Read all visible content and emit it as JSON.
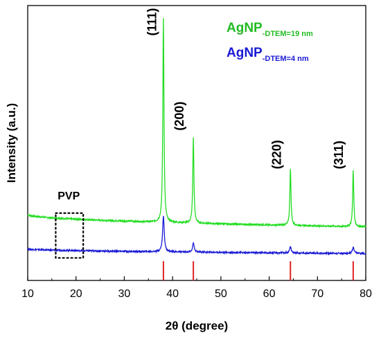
{
  "chart_data": {
    "type": "line",
    "xlabel": "2θ (degree)",
    "ylabel": "Intensity (a.u.)",
    "xlim": [
      10,
      80
    ],
    "ylim": [
      0,
      100
    ],
    "xticks": [
      10,
      20,
      30,
      40,
      50,
      60,
      70,
      80
    ],
    "y_tick_labels_shown": false,
    "grid": false,
    "legend": {
      "placement": "top-right",
      "entries": [
        {
          "main": "AgNP",
          "sub": "-DTEM=19 nm",
          "color": "#22bb22"
        },
        {
          "main": "AgNP",
          "sub": "-DTEM=4 nm",
          "color": "#1a1ad6"
        }
      ]
    },
    "series": [
      {
        "color": "#22dd22",
        "baseline_start": 24.0,
        "baseline_end": 19.5,
        "peaks": [
          {
            "x": 38.1,
            "height": 74.5,
            "width": 0.14
          },
          {
            "x": 44.3,
            "height": 31.0,
            "width": 0.14
          },
          {
            "x": 64.4,
            "height": 20.8,
            "width": 0.14
          },
          {
            "x": 77.4,
            "height": 20.3,
            "width": 0.14
          }
        ]
      },
      {
        "color": "#1a1ad6",
        "baseline_start": 11.5,
        "baseline_end": 9.8,
        "peaks": [
          {
            "x": 38.1,
            "height": 13.0,
            "width": 0.2
          },
          {
            "x": 44.3,
            "height": 3.3,
            "width": 0.2
          },
          {
            "x": 64.4,
            "height": 2.2,
            "width": 0.2
          },
          {
            "x": 77.4,
            "height": 2.2,
            "width": 0.2
          }
        ]
      }
    ],
    "reference_lines": {
      "color": "#dd2222",
      "x": [
        38.1,
        44.3,
        64.4,
        77.4
      ],
      "y_range": [
        0,
        7
      ]
    },
    "peak_labels": [
      {
        "text": "(111)",
        "x": 36.6,
        "y": 89
      },
      {
        "text": "(200)",
        "x": 42.3,
        "y": 54.5
      },
      {
        "text": "(220)",
        "x": 62.4,
        "y": 40.5
      },
      {
        "text": "(311)",
        "x": 75.3,
        "y": 40.5
      }
    ],
    "annotations": [
      {
        "text": "PVP",
        "x": 18.5,
        "y": 29.5
      }
    ],
    "pvp_box": {
      "x": [
        15.8,
        21.5
      ],
      "y": [
        8.2,
        24.5
      ]
    }
  }
}
